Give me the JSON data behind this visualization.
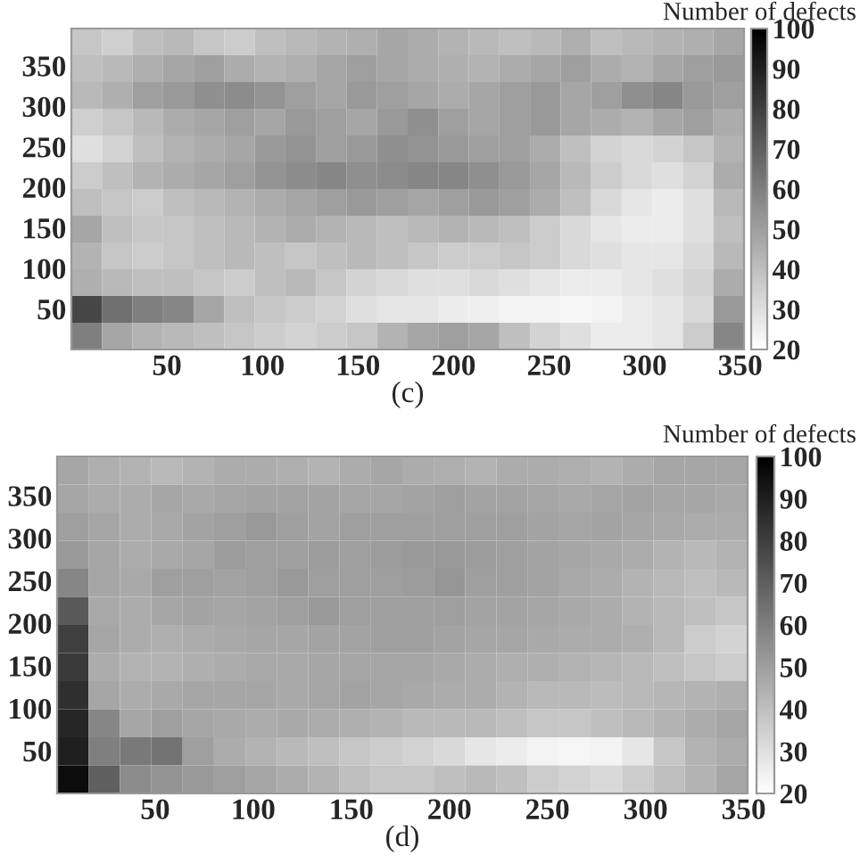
{
  "chart_data": [
    {
      "type": "heatmap",
      "xlabel": "(c)",
      "clabel": "Number of defects",
      "xlim": [
        0,
        352
      ],
      "ylim": [
        0,
        396
      ],
      "xticks": [
        50,
        100,
        150,
        200,
        250,
        300,
        350
      ],
      "yticks": [
        50,
        100,
        150,
        200,
        250,
        300,
        350
      ],
      "clim": [
        20,
        100
      ],
      "cticks": [
        20,
        30,
        40,
        50,
        60,
        70,
        80,
        90,
        100
      ],
      "cells": [
        [
          38,
          35,
          40,
          42,
          38,
          36,
          40,
          42,
          44,
          45,
          48,
          46,
          44,
          42,
          40,
          42,
          45,
          40,
          42,
          44,
          45,
          48
        ],
        [
          40,
          42,
          45,
          48,
          50,
          46,
          44,
          45,
          48,
          50,
          48,
          46,
          45,
          44,
          46,
          48,
          50,
          46,
          44,
          48,
          50,
          52
        ],
        [
          42,
          45,
          50,
          52,
          55,
          56,
          54,
          50,
          48,
          52,
          50,
          48,
          46,
          48,
          50,
          52,
          48,
          50,
          55,
          58,
          52,
          50
        ],
        [
          35,
          38,
          42,
          46,
          48,
          50,
          48,
          52,
          50,
          48,
          52,
          55,
          50,
          48,
          50,
          52,
          48,
          46,
          44,
          48,
          50,
          46
        ],
        [
          30,
          34,
          40,
          44,
          46,
          48,
          52,
          54,
          50,
          52,
          55,
          54,
          52,
          50,
          50,
          46,
          40,
          34,
          32,
          34,
          38,
          44
        ],
        [
          36,
          40,
          44,
          46,
          48,
          50,
          54,
          56,
          58,
          55,
          56,
          58,
          58,
          55,
          52,
          48,
          42,
          36,
          32,
          30,
          34,
          46
        ],
        [
          40,
          38,
          36,
          40,
          42,
          44,
          46,
          48,
          50,
          52,
          50,
          48,
          50,
          52,
          50,
          46,
          40,
          32,
          28,
          26,
          30,
          42
        ],
        [
          48,
          40,
          38,
          38,
          40,
          42,
          44,
          46,
          44,
          42,
          40,
          42,
          44,
          42,
          40,
          36,
          32,
          28,
          26,
          26,
          30,
          40
        ],
        [
          44,
          38,
          36,
          38,
          40,
          42,
          40,
          38,
          40,
          42,
          40,
          38,
          36,
          36,
          38,
          36,
          32,
          30,
          28,
          28,
          32,
          42
        ],
        [
          45,
          42,
          40,
          40,
          38,
          36,
          40,
          42,
          38,
          34,
          32,
          30,
          30,
          32,
          30,
          28,
          26,
          26,
          28,
          30,
          34,
          46
        ],
        [
          78,
          65,
          60,
          58,
          48,
          40,
          38,
          36,
          34,
          30,
          28,
          28,
          26,
          25,
          24,
          24,
          23,
          24,
          26,
          28,
          32,
          52
        ],
        [
          60,
          48,
          44,
          42,
          40,
          38,
          36,
          34,
          36,
          38,
          44,
          48,
          50,
          48,
          40,
          34,
          30,
          26,
          26,
          28,
          36,
          58
        ]
      ]
    },
    {
      "type": "heatmap",
      "xlabel": "(d)",
      "clabel": "Number of defects",
      "xlim": [
        0,
        352
      ],
      "ylim": [
        0,
        396
      ],
      "xticks": [
        50,
        100,
        150,
        200,
        250,
        300,
        350
      ],
      "yticks": [
        50,
        100,
        150,
        200,
        250,
        300,
        350
      ],
      "clim": [
        20,
        100
      ],
      "cticks": [
        20,
        30,
        40,
        50,
        60,
        70,
        80,
        90,
        100
      ],
      "cells": [
        [
          48,
          45,
          44,
          42,
          44,
          46,
          46,
          45,
          44,
          46,
          48,
          46,
          45,
          44,
          46,
          46,
          45,
          44,
          46,
          48,
          48,
          48
        ],
        [
          48,
          46,
          46,
          48,
          47,
          48,
          49,
          49,
          49,
          48,
          48,
          49,
          50,
          49,
          49,
          48,
          47,
          48,
          49,
          48,
          48,
          47
        ],
        [
          50,
          48,
          46,
          47,
          49,
          50,
          52,
          50,
          49,
          50,
          50,
          50,
          50,
          50,
          50,
          49,
          48,
          49,
          48,
          47,
          46,
          46
        ],
        [
          52,
          48,
          46,
          47,
          48,
          51,
          50,
          50,
          51,
          50,
          51,
          52,
          52,
          51,
          50,
          49,
          48,
          47,
          46,
          44,
          42,
          44
        ],
        [
          58,
          48,
          47,
          50,
          50,
          49,
          50,
          52,
          50,
          50,
          50,
          51,
          53,
          50,
          50,
          49,
          47,
          46,
          44,
          42,
          40,
          42
        ],
        [
          72,
          47,
          46,
          48,
          49,
          48,
          49,
          50,
          52,
          50,
          50,
          50,
          50,
          49,
          49,
          48,
          47,
          46,
          44,
          42,
          40,
          38
        ],
        [
          80,
          48,
          46,
          45,
          46,
          47,
          48,
          48,
          49,
          49,
          50,
          50,
          49,
          48,
          48,
          47,
          46,
          46,
          45,
          42,
          36,
          34
        ],
        [
          82,
          46,
          44,
          44,
          45,
          46,
          47,
          47,
          48,
          48,
          48,
          48,
          47,
          46,
          45,
          45,
          44,
          43,
          42,
          40,
          38,
          36
        ],
        [
          85,
          48,
          46,
          47,
          48,
          48,
          48,
          47,
          48,
          49,
          48,
          47,
          46,
          46,
          44,
          42,
          42,
          41,
          42,
          43,
          44,
          45
        ],
        [
          88,
          58,
          48,
          50,
          48,
          47,
          46,
          47,
          46,
          45,
          44,
          42,
          42,
          42,
          40,
          38,
          38,
          40,
          42,
          44,
          46,
          48
        ],
        [
          90,
          60,
          62,
          64,
          50,
          46,
          44,
          42,
          40,
          38,
          36,
          34,
          32,
          28,
          26,
          24,
          23,
          24,
          28,
          38,
          44,
          46
        ],
        [
          96,
          70,
          56,
          54,
          52,
          50,
          48,
          46,
          44,
          40,
          38,
          38,
          40,
          42,
          40,
          36,
          34,
          32,
          36,
          40,
          44,
          48
        ]
      ]
    }
  ]
}
